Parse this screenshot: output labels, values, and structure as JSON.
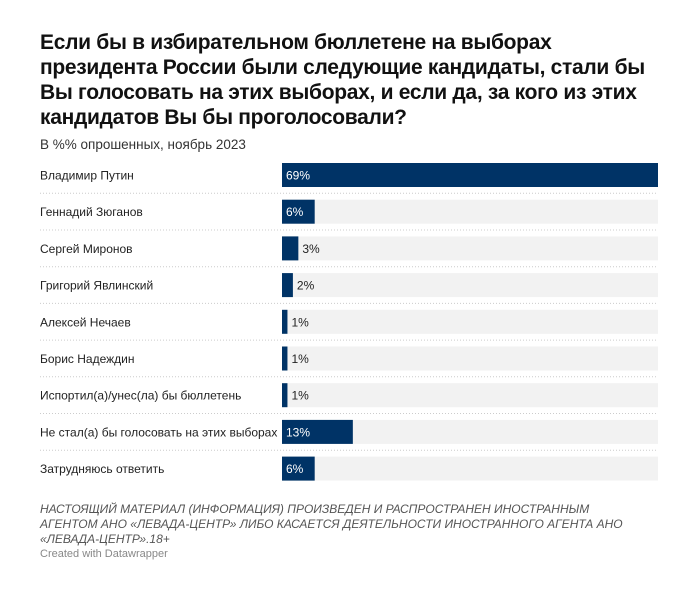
{
  "title": "Если бы в избирательном бюллетене на выборах президента России были следующие кандидаты, стали бы Вы голосовать на этих выборах, и если да, за кого из этих кандидатов Вы бы проголосовали?",
  "subtitle": "В %% опрошенных, ноябрь 2023",
  "notes": "НАСТОЯЩИЙ МАТЕРИАЛ (ИНФОРМАЦИЯ) ПРОИЗВЕДЕН И РАСПРОСТРАНЕН ИНОСТРАННЫМ АГЕНТОМ АНО «ЛЕВАДА-ЦЕНТР» ЛИБО КАСАЕТСЯ ДЕЯТЕЛЬНОСТИ ИНОСТРАННОГО АГЕНТА АНО «ЛЕВАДА-ЦЕНТР».18+",
  "credit": "Created with Datawrapper",
  "colors": {
    "bar": "#003366",
    "track": "#f2f2f2"
  },
  "chart_data": {
    "type": "bar",
    "orientation": "horizontal",
    "categories": [
      "Владимир Путин",
      "Геннадий Зюганов",
      "Сергей Миронов",
      "Григорий Явлинский",
      "Алексей Нечаев",
      "Борис Надеждин",
      "Испортил(а)/унес(ла) бы бюллетень",
      "Не стал(а) бы голосовать на этих выборах",
      "Затрудняюсь ответить"
    ],
    "values": [
      69,
      6,
      3,
      2,
      1,
      1,
      1,
      13,
      6
    ],
    "value_labels": [
      "69%",
      "6%",
      "3%",
      "2%",
      "1%",
      "1%",
      "1%",
      "13%",
      "6%"
    ],
    "xlim": [
      0,
      69
    ],
    "grid": false
  }
}
